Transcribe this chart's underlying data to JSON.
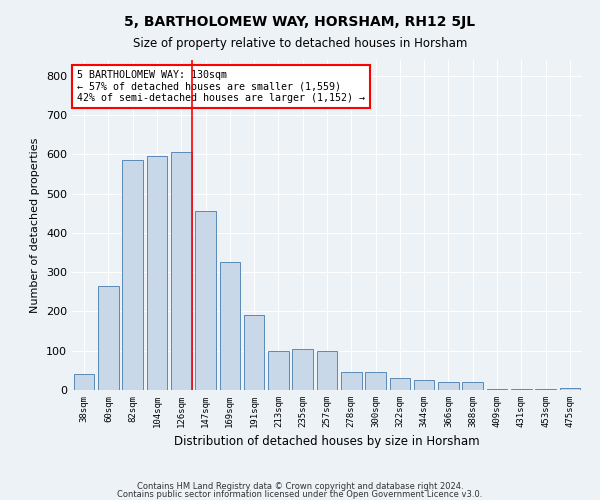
{
  "title": "5, BARTHOLOMEW WAY, HORSHAM, RH12 5JL",
  "subtitle": "Size of property relative to detached houses in Horsham",
  "xlabel": "Distribution of detached houses by size in Horsham",
  "ylabel": "Number of detached properties",
  "categories": [
    "38sqm",
    "60sqm",
    "82sqm",
    "104sqm",
    "126sqm",
    "147sqm",
    "169sqm",
    "191sqm",
    "213sqm",
    "235sqm",
    "257sqm",
    "278sqm",
    "300sqm",
    "322sqm",
    "344sqm",
    "366sqm",
    "388sqm",
    "409sqm",
    "431sqm",
    "453sqm",
    "475sqm"
  ],
  "values": [
    40,
    265,
    585,
    595,
    605,
    455,
    325,
    190,
    100,
    105,
    100,
    45,
    45,
    30,
    25,
    20,
    20,
    2,
    2,
    2,
    5
  ],
  "bar_color": "#c8d8e8",
  "bar_edge_color": "#5a8ab8",
  "vline_x_index": 4,
  "vline_color": "red",
  "annotation_line1": "5 BARTHOLOMEW WAY: 130sqm",
  "annotation_line2": "← 57% of detached houses are smaller (1,559)",
  "annotation_line3": "42% of semi-detached houses are larger (1,152) →",
  "annotation_box_color": "white",
  "annotation_box_edge_color": "red",
  "ylim": [
    0,
    840
  ],
  "yticks": [
    0,
    100,
    200,
    300,
    400,
    500,
    600,
    700,
    800
  ],
  "footer1": "Contains HM Land Registry data © Crown copyright and database right 2024.",
  "footer2": "Contains public sector information licensed under the Open Government Licence v3.0.",
  "background_color": "#edf2f7",
  "plot_background_color": "#edf2f7",
  "grid_color": "white"
}
